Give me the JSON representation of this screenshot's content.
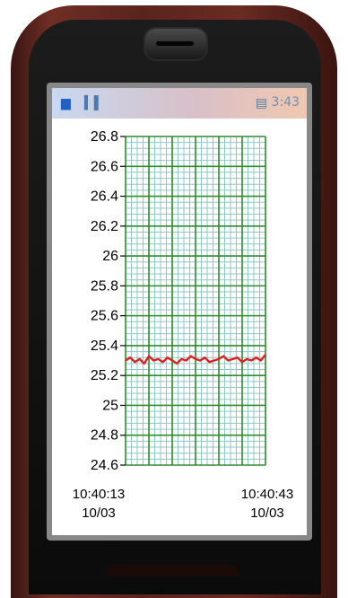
{
  "status": {
    "left_icon": "mail-icon",
    "signal_icon": "antenna-icon",
    "time": "3:43"
  },
  "chart_data": {
    "type": "line",
    "title": "",
    "xlabel": "",
    "ylabel": "",
    "ylim": [
      24.6,
      26.8
    ],
    "yticks": [
      24.6,
      24.8,
      25,
      25.2,
      25.4,
      25.6,
      25.8,
      26,
      26.2,
      26.4,
      26.6,
      26.8
    ],
    "ytick_labels": [
      "24.6",
      "24.8",
      "25",
      "25.2",
      "25.4",
      "25.6",
      "25.8",
      "26",
      "26.2",
      "26.4",
      "26.6",
      "26.8"
    ],
    "x_start": {
      "time": "10:40:13",
      "date": "10/03"
    },
    "x_end": {
      "time": "10:40:43",
      "date": "10/03"
    },
    "xlim_seconds": [
      0,
      30
    ],
    "grid": true,
    "series": [
      {
        "color": "#e02020",
        "x": [
          0,
          1,
          2,
          3,
          4,
          5,
          6,
          7,
          8,
          9,
          10,
          11,
          12,
          13,
          14,
          15,
          16,
          17,
          18,
          19,
          20,
          21,
          22,
          23,
          24,
          25,
          26,
          27,
          28,
          29,
          30
        ],
        "values": [
          25.3,
          25.32,
          25.29,
          25.31,
          25.28,
          25.33,
          25.3,
          25.31,
          25.29,
          25.32,
          25.3,
          25.28,
          25.31,
          25.3,
          25.33,
          25.31,
          25.3,
          25.32,
          25.29,
          25.3,
          25.31,
          25.33,
          25.3,
          25.31,
          25.32,
          25.29,
          25.31,
          25.3,
          25.32,
          25.3,
          25.34
        ]
      }
    ]
  },
  "colors": {
    "major_grid": "#2e8b2e",
    "minor_grid": "#8fc6c6",
    "series": "#e02020"
  }
}
